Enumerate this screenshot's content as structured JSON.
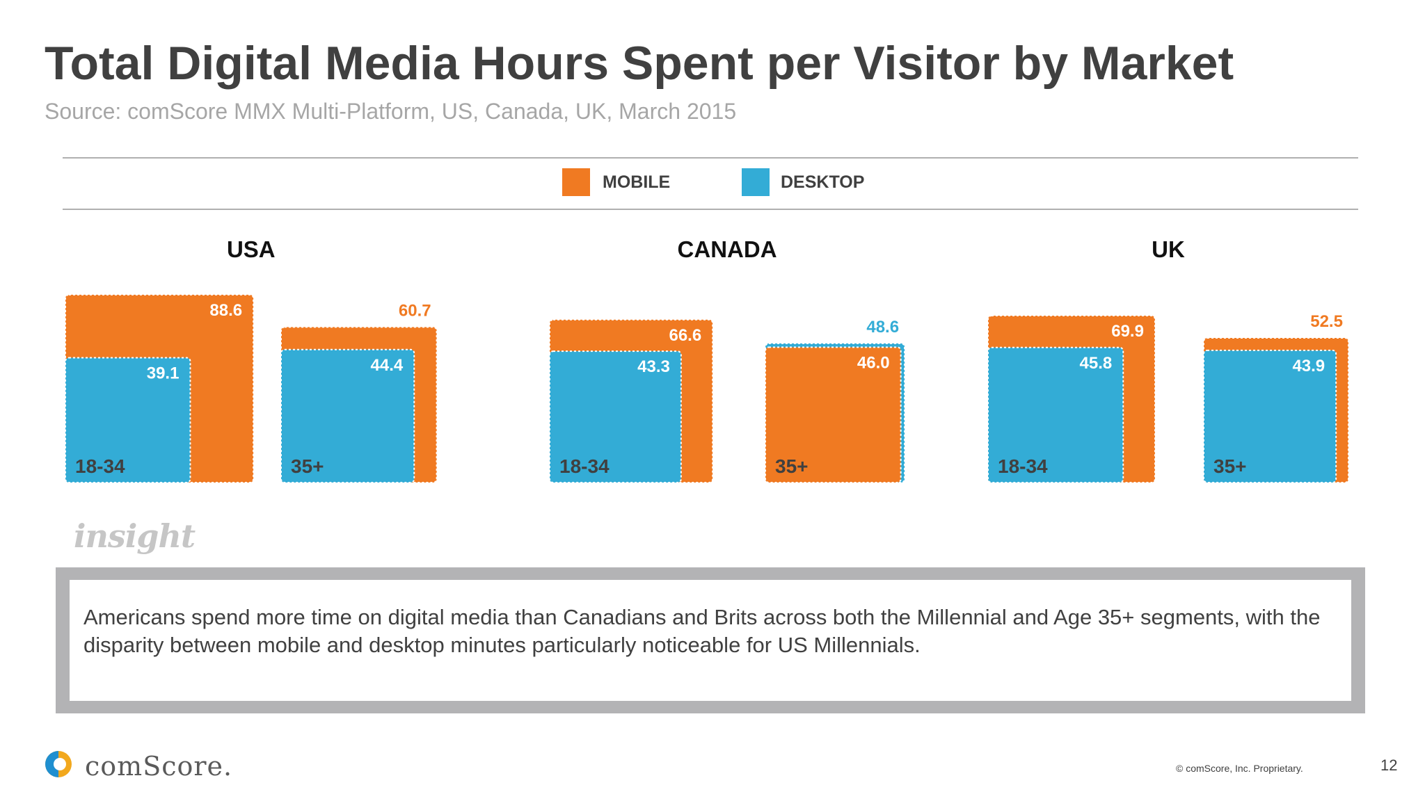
{
  "slide": {
    "title": "Total Digital Media Hours Spent per Visitor by Market",
    "subtitle": "Source: comScore MMX Multi-Platform, US, Canada, UK, March 2015"
  },
  "legend": {
    "mobile_label": "MOBILE",
    "desktop_label": "DESKTOP"
  },
  "colors": {
    "mobile": "#f07a22",
    "desktop": "#33acd6",
    "text_dark": "#404040"
  },
  "chart_data": {
    "type": "bar",
    "encoding": "overlapping squares; area proportional to hours",
    "series": [
      {
        "name": "MOBILE"
      },
      {
        "name": "DESKTOP"
      }
    ],
    "groups": [
      {
        "market": "USA",
        "segments": [
          {
            "label": "18-34",
            "mobile": 88.6,
            "desktop": 39.1
          },
          {
            "label": "35+",
            "mobile": 60.7,
            "desktop": 44.4
          }
        ]
      },
      {
        "market": "CANADA",
        "segments": [
          {
            "label": "18-34",
            "mobile": 66.6,
            "desktop": 43.3
          },
          {
            "label": "35+",
            "mobile": 46.0,
            "desktop": 48.6
          }
        ]
      },
      {
        "market": "UK",
        "segments": [
          {
            "label": "18-34",
            "mobile": 69.9,
            "desktop": 45.8
          },
          {
            "label": "35+",
            "mobile": 52.5,
            "desktop": 43.9
          }
        ]
      }
    ]
  },
  "insight": {
    "heading": "insight",
    "text": "Americans spend more time on digital media than Canadians and Brits across both the Millennial and Age 35+ segments, with the disparity between mobile and desktop minutes particularly noticeable for US Millennials."
  },
  "footer": {
    "logo_text": "comScore.",
    "copyright": "© comScore, Inc. Proprietary.",
    "page_number": "12"
  }
}
